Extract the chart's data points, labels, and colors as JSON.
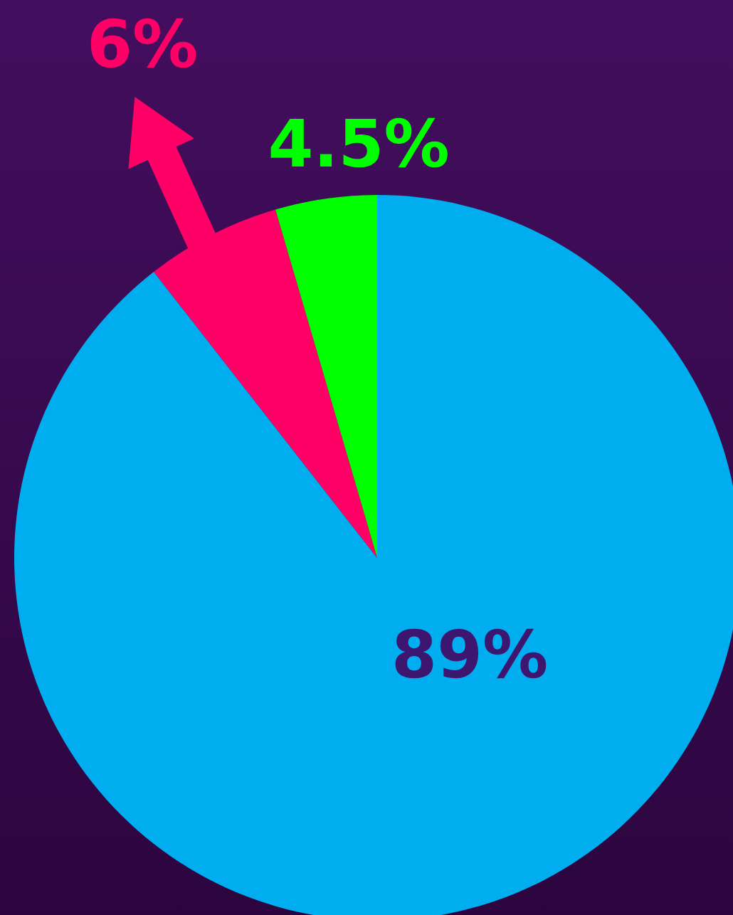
{
  "chart_data": {
    "type": "pie",
    "categories": [
      null,
      null,
      null
    ],
    "values": [
      89,
      6,
      4.5
    ],
    "colors": [
      "#00adef",
      "#ff0066",
      "#00ff00"
    ],
    "value_labels": [
      "89%",
      "6%",
      "4.5%"
    ]
  }
}
